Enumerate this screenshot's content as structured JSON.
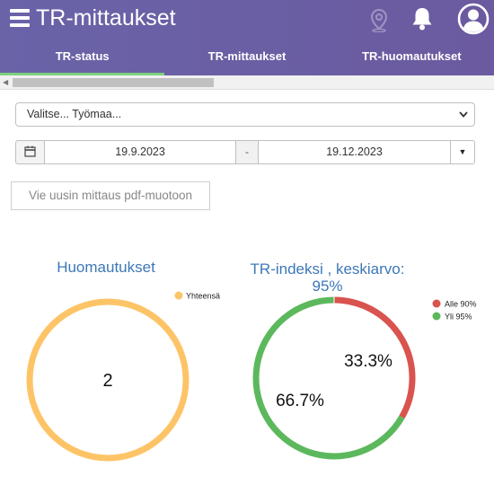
{
  "header": {
    "title": "TR-mittaukset",
    "icons": [
      "menu-icon",
      "location-pin-icon",
      "bell-icon",
      "user-icon"
    ],
    "color": "#6a63a8"
  },
  "tabs": [
    {
      "label": "TR-status",
      "active": true
    },
    {
      "label": "TR-mittaukset",
      "active": false
    },
    {
      "label": "TR-huomautukset",
      "active": false
    }
  ],
  "filters": {
    "site_select": "Valitse... Työmaa...",
    "date_from": "19.9.2023",
    "date_separator": "-",
    "date_to": "19.12.2023"
  },
  "actions": {
    "export_pdf": "Vie uusin mittaus pdf-muotoon"
  },
  "charts": {
    "remarks": {
      "title": "Huomautukset",
      "legend": [
        {
          "label": "Yhteensä",
          "color": "#fdc467"
        }
      ],
      "center_value": "2"
    },
    "tr_index": {
      "title": "TR-indeksi , keskiarvo: 95%",
      "legend": [
        {
          "label": "Alle 90%",
          "color": "#d9534f"
        },
        {
          "label": "Yli 95%",
          "color": "#5cb85c"
        }
      ],
      "slice_labels": [
        "33.3%",
        "66.7%"
      ]
    }
  },
  "chart_data": [
    {
      "type": "pie",
      "title": "Huomautukset",
      "categories": [
        "Yhteensä"
      ],
      "values": [
        2
      ],
      "colors": [
        "#fdc467"
      ]
    },
    {
      "type": "pie",
      "title": "TR-indeksi , keskiarvo: 95%",
      "categories": [
        "Alle 90%",
        "Yli 95%"
      ],
      "values": [
        33.3,
        66.7
      ],
      "colors": [
        "#d9534f",
        "#5cb85c"
      ]
    }
  ]
}
